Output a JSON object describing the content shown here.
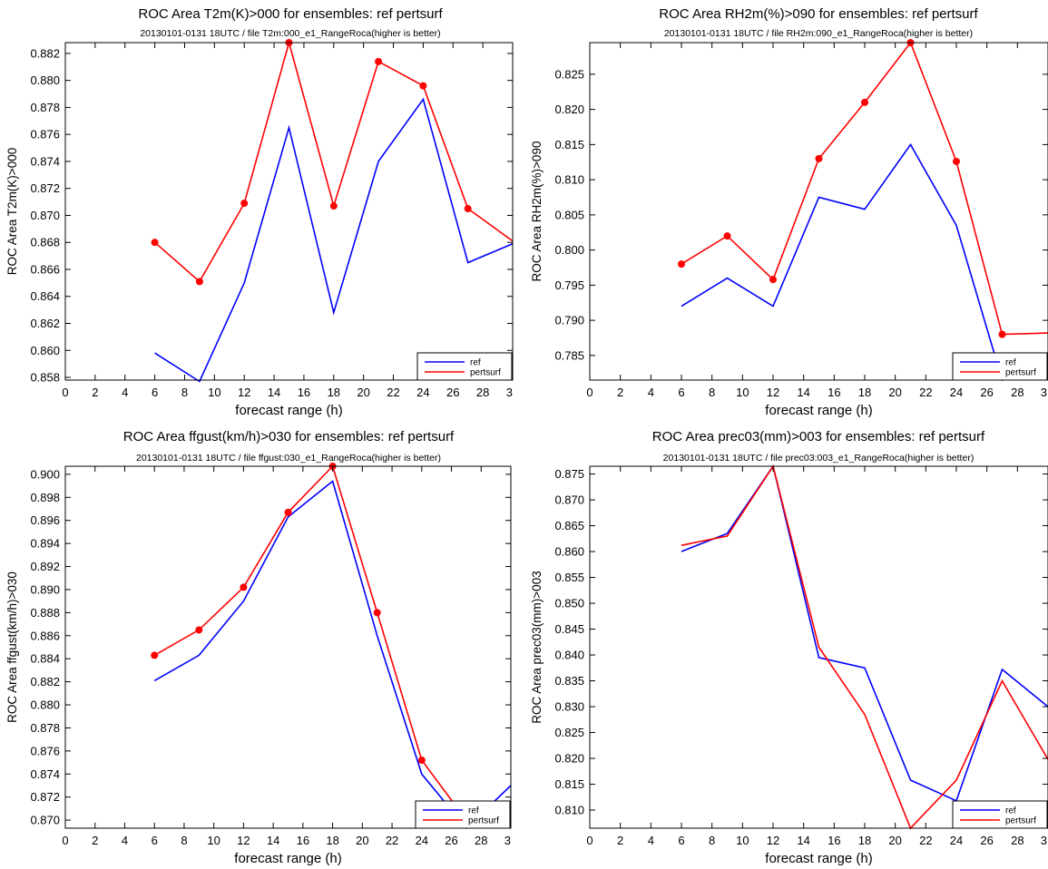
{
  "chart_data": [
    {
      "type": "line",
      "title": "ROC Area T2m(K)>000 for ensembles: ref pertsurf",
      "subtitle": "20130101-0131 18UTC / file T2m:000_e1_RangeRoca(higher is better)",
      "xlabel": "forecast range (h)",
      "ylabel": "ROC Area T2m(K)>000",
      "xlim": [
        0,
        30
      ],
      "ylim": [
        0.8578,
        0.8828
      ],
      "xticks": [
        "0",
        "2",
        "4",
        "6",
        "8",
        "10",
        "12",
        "14",
        "16",
        "18",
        "20",
        "22",
        "24",
        "26",
        "28",
        "3"
      ],
      "yticks": [
        "0.858",
        "0.860",
        "0.862",
        "0.864",
        "0.866",
        "0.868",
        "0.870",
        "0.872",
        "0.874",
        "0.876",
        "0.878",
        "0.880",
        "0.882"
      ],
      "legend": [
        "ref",
        "pertsurf"
      ],
      "legend_position": "bottom-right",
      "grid": false,
      "series": [
        {
          "name": "ref",
          "color": "#0000ff",
          "markers": false,
          "x": [
            6,
            9,
            12,
            15,
            18,
            21,
            24,
            27,
            30
          ],
          "y": [
            0.8598,
            0.8577,
            0.865,
            0.8765,
            0.8628,
            0.874,
            0.8786,
            0.8665,
            0.8679
          ]
        },
        {
          "name": "pertsurf",
          "color": "#ff0000",
          "markers": true,
          "x": [
            6,
            9,
            12,
            15,
            18,
            21,
            24,
            27,
            30
          ],
          "y": [
            0.868,
            0.8651,
            0.8709,
            0.8828,
            0.8707,
            0.8814,
            0.8796,
            0.8705,
            0.8681
          ]
        }
      ]
    },
    {
      "type": "line",
      "title": "ROC Area RH2m(%)>090 for ensembles: ref pertsurf",
      "subtitle": "20130101-0131 18UTC / file RH2m:090_e1_RangeRoca(higher is better)",
      "xlabel": "forecast range (h)",
      "ylabel": "ROC Area RH2m(%)>090",
      "xlim": [
        0,
        30
      ],
      "ylim": [
        0.7815,
        0.8295
      ],
      "xticks": [
        "0",
        "2",
        "4",
        "6",
        "8",
        "10",
        "12",
        "14",
        "16",
        "18",
        "20",
        "22",
        "24",
        "26",
        "28",
        "3"
      ],
      "yticks": [
        "0.785",
        "0.790",
        "0.795",
        "0.800",
        "0.805",
        "0.810",
        "0.815",
        "0.820",
        "0.825"
      ],
      "legend": [
        "ref",
        "pertsurf"
      ],
      "legend_position": "bottom-right",
      "grid": false,
      "series": [
        {
          "name": "ref",
          "color": "#0000ff",
          "markers": false,
          "x": [
            6,
            9,
            12,
            15,
            18,
            21,
            24,
            27,
            30
          ],
          "y": [
            0.792,
            0.796,
            0.792,
            0.8075,
            0.8058,
            0.815,
            0.8035,
            0.7815,
            0.7842
          ]
        },
        {
          "name": "pertsurf",
          "color": "#ff0000",
          "markers": true,
          "x": [
            6,
            9,
            12,
            15,
            18,
            21,
            24,
            27,
            30
          ],
          "y": [
            0.798,
            0.802,
            0.7958,
            0.813,
            0.821,
            0.8295,
            0.8126,
            0.788,
            0.7882
          ]
        }
      ]
    },
    {
      "type": "line",
      "title": "ROC Area ffgust(km/h)>030 for ensembles: ref pertsurf",
      "subtitle": "20130101-0131 18UTC / file ffgust:030_e1_RangeRoca(higher is better)",
      "xlabel": "forecast range (h)",
      "ylabel": "ROC Area ffgust(km/h)>030",
      "xlim": [
        0,
        30
      ],
      "ylim": [
        0.8693,
        0.9007
      ],
      "xticks": [
        "0",
        "2",
        "4",
        "6",
        "8",
        "10",
        "12",
        "14",
        "16",
        "18",
        "20",
        "22",
        "24",
        "26",
        "28",
        "3"
      ],
      "yticks": [
        "0.870",
        "0.872",
        "0.874",
        "0.876",
        "0.878",
        "0.880",
        "0.882",
        "0.884",
        "0.886",
        "0.888",
        "0.890",
        "0.892",
        "0.894",
        "0.896",
        "0.898",
        "0.900"
      ],
      "legend": [
        "ref",
        "pertsurf"
      ],
      "legend_position": "bottom-right",
      "grid": false,
      "series": [
        {
          "name": "ref",
          "color": "#0000ff",
          "markers": false,
          "x": [
            6,
            9,
            12,
            15,
            18,
            21,
            24,
            27,
            30
          ],
          "y": [
            0.8821,
            0.8843,
            0.889,
            0.8963,
            0.8994,
            0.886,
            0.874,
            0.8693,
            0.873
          ]
        },
        {
          "name": "pertsurf",
          "color": "#ff0000",
          "markers": true,
          "x": [
            6,
            9,
            12,
            15,
            18,
            21,
            24,
            27,
            30
          ],
          "y": [
            0.8843,
            0.8865,
            0.8902,
            0.8967,
            0.9007,
            0.888,
            0.8752,
            0.87,
            0.87
          ]
        }
      ]
    },
    {
      "type": "line",
      "title": "ROC Area prec03(mm)>003 for ensembles: ref pertsurf",
      "subtitle": "20130101-0131 18UTC / file prec03:003_e1_RangeRoca(higher is better)",
      "xlabel": "forecast range (h)",
      "ylabel": "ROC Area prec03(mm)>003",
      "xlim": [
        0,
        30
      ],
      "ylim": [
        0.8065,
        0.8765
      ],
      "xticks": [
        "0",
        "2",
        "4",
        "6",
        "8",
        "10",
        "12",
        "14",
        "16",
        "18",
        "20",
        "22",
        "24",
        "26",
        "28",
        "3"
      ],
      "yticks": [
        "0.810",
        "0.815",
        "0.820",
        "0.825",
        "0.830",
        "0.835",
        "0.840",
        "0.845",
        "0.850",
        "0.855",
        "0.860",
        "0.865",
        "0.870",
        "0.875"
      ],
      "legend": [
        "ref",
        "pertsurf"
      ],
      "legend_position": "bottom-right",
      "grid": false,
      "series": [
        {
          "name": "ref",
          "color": "#0000ff",
          "markers": false,
          "x": [
            6,
            9,
            12,
            15,
            18,
            21,
            24,
            27,
            30
          ],
          "y": [
            0.86,
            0.8635,
            0.8765,
            0.8395,
            0.8375,
            0.8158,
            0.8118,
            0.8372,
            0.83
          ]
        },
        {
          "name": "pertsurf",
          "color": "#ff0000",
          "markers": false,
          "x": [
            6,
            9,
            12,
            15,
            18,
            21,
            24,
            27,
            30
          ],
          "y": [
            0.8612,
            0.863,
            0.8765,
            0.8415,
            0.8285,
            0.8065,
            0.8158,
            0.835,
            0.8198
          ]
        }
      ]
    }
  ]
}
